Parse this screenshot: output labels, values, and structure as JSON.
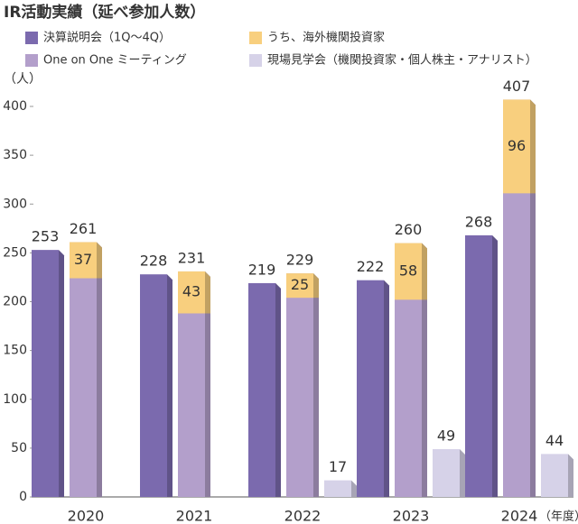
{
  "chart_data": {
    "type": "bar",
    "title": "IR活動実績（延べ参加人数）",
    "ylabel": "（人）",
    "xlabel": "（年度）",
    "categories": [
      "2020",
      "2021",
      "2022",
      "2023",
      "2024"
    ],
    "series": [
      {
        "name": "決算説明会（1Q～4Q）",
        "color": "#7b6aae",
        "values": [
          253,
          228,
          219,
          222,
          268
        ]
      },
      {
        "name": "うち、海外機関投資家",
        "color": "#f8cf7e",
        "values": [
          37,
          43,
          25,
          58,
          96
        ]
      },
      {
        "name": "One on One ミーティング",
        "color": "#b39fcb",
        "values": [
          261,
          231,
          229,
          260,
          407
        ]
      },
      {
        "name": "現場見学会（機関投資家・個人株主・アナリスト）",
        "color": "#d6d2e8",
        "values": [
          null,
          null,
          17,
          49,
          44
        ]
      }
    ],
    "ylim": [
      0,
      400
    ],
    "yticks": [
      0,
      50,
      100,
      150,
      200,
      250,
      300,
      350,
      400
    ],
    "grid": false
  }
}
